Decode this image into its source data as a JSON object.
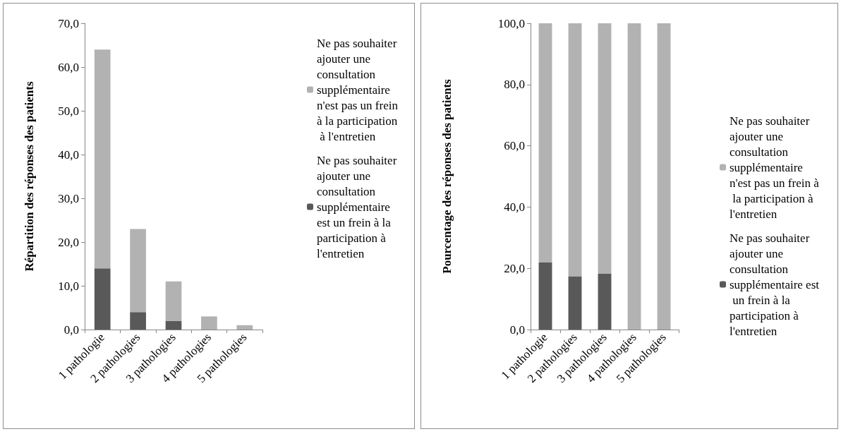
{
  "chart_data": [
    {
      "type": "bar",
      "stacked": true,
      "ylabel": "Répartition des réponses des patients",
      "categories": [
        "1 pathologie",
        "2 pathologies",
        "3 pathologies",
        "4 pathologies",
        "5 pathologies"
      ],
      "series": [
        {
          "name": "Ne pas souhaiter ajouter une consultation supplémentaire est un frein à la participation à l'entretien",
          "color": "#595959",
          "values": [
            14,
            4,
            2,
            0,
            0
          ]
        },
        {
          "name": "Ne pas souhaiter ajouter une consultation supplémentaire n'est pas un frein à la participation à l'entretien",
          "color": "#b2b2b2",
          "values": [
            50,
            19,
            9,
            3,
            1
          ]
        }
      ],
      "ylim": [
        0,
        70
      ],
      "yticks": [
        {
          "value": 0,
          "label": "0,0"
        },
        {
          "value": 10,
          "label": "10,0"
        },
        {
          "value": 20,
          "label": "20,0"
        },
        {
          "value": 30,
          "label": "30,0"
        },
        {
          "value": 40,
          "label": "40,0"
        },
        {
          "value": 50,
          "label": "50,0"
        },
        {
          "value": 60,
          "label": "60,0"
        },
        {
          "value": 70,
          "label": "70,0"
        }
      ],
      "grid": false,
      "legend": "right"
    },
    {
      "type": "bar",
      "stacked": true,
      "ylabel": "Pourcentage des réponses des patients",
      "categories": [
        "1 pathologie",
        "2 pathologies",
        "3 pathologies",
        "4 pathologies",
        "5 pathologies"
      ],
      "series": [
        {
          "name": "Ne pas souhaiter ajouter une consultation supplémentaire est un frein à la participation à l'entretien",
          "color": "#595959",
          "values": [
            21.9,
            17.4,
            18.2,
            0,
            0
          ]
        },
        {
          "name": "Ne pas souhaiter ajouter une consultation supplémentaire n'est pas un frein à la participation à l'entretien",
          "color": "#b2b2b2",
          "values": [
            78.1,
            82.6,
            81.8,
            100,
            100
          ]
        }
      ],
      "ylim": [
        0,
        100
      ],
      "yticks": [
        {
          "value": 0,
          "label": "0,0"
        },
        {
          "value": 20,
          "label": "20,0"
        },
        {
          "value": 40,
          "label": "40,0"
        },
        {
          "value": 60,
          "label": "60,0"
        },
        {
          "value": 80,
          "label": "80,0"
        },
        {
          "value": 100,
          "label": "100,0"
        }
      ],
      "grid": false,
      "legend": "right"
    }
  ]
}
